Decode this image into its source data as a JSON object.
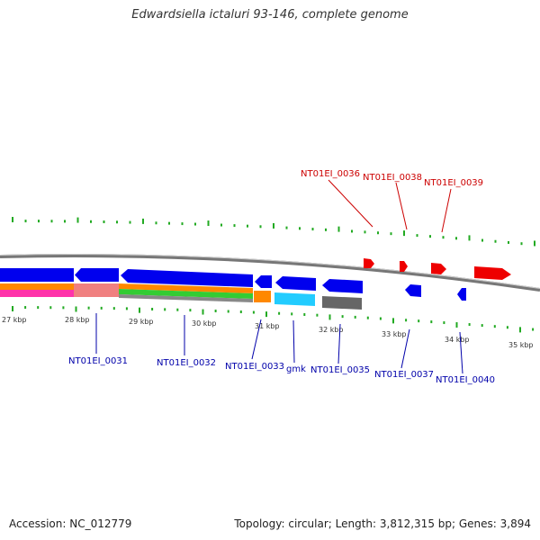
{
  "title": "Edwardsiella ictaluri 93-146, complete genome",
  "accession": "Accession: NC_012779",
  "topology": "Topology: circular; Length: 3,812,315 bp; Genes: 3,894",
  "colors": {
    "forward": "#ff0000",
    "reverse": "#0000ee",
    "upper_label": "#cc0000",
    "lower_label": "#0000aa",
    "backbone": "#888888",
    "tick": "#22aa22"
  },
  "scale_labels": [
    "27 kbp",
    "28 kbp",
    "29 kbp",
    "30 kbp",
    "31 kbp",
    "32 kbp",
    "33 kbp",
    "34 kbp",
    "35 kbp"
  ],
  "upper_gene_labels": [
    "NT01EI_0036",
    "NT01EI_0038",
    "NT01EI_0039"
  ],
  "lower_gene_labels": [
    "NT01EI_0031",
    "NT01EI_0032",
    "NT01EI_0033",
    "gmk",
    "NT01EI_0035",
    "NT01EI_0037",
    "NT01EI_0040"
  ]
}
